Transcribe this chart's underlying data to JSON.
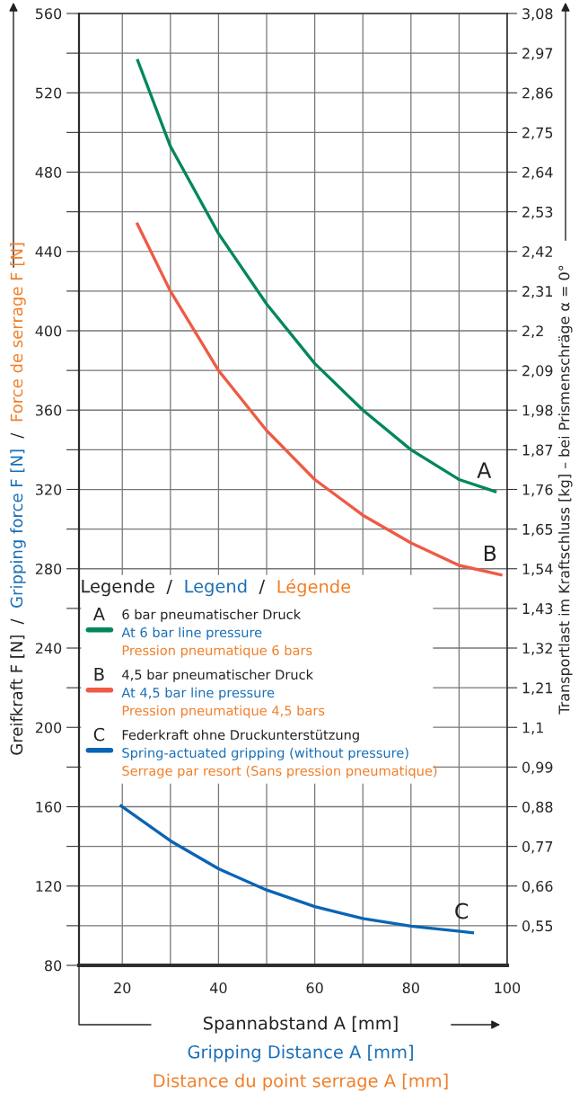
{
  "chart_data": {
    "type": "line",
    "xlabel": "Spannabstand A [mm]\nGripping Distance A [mm]\nDistance du point serrage A [mm]",
    "ylabel": "Greifkraft F [N] / Gripping force F [N] / Force de serrage F [N]",
    "y2label": "Transportlast im Kraftschluss [kg] – bei Prismenschräge α = 0°",
    "legend_title": "Legende / Legend / Légende",
    "xlim": [
      11,
      100
    ],
    "xticks": [
      20,
      {
        "value": 30,
        "label": null
      },
      40,
      {
        "value": 50,
        "label": null
      },
      60,
      {
        "value": 70,
        "label": null
      },
      80,
      {
        "value": 90,
        "label": null
      },
      100
    ],
    "ylim": [
      80,
      560
    ],
    "yticks": [
      80,
      {
        "value": 100,
        "label": null
      },
      120,
      {
        "value": 140,
        "label": null
      },
      160,
      {
        "value": 180,
        "label": null
      },
      200,
      {
        "value": 220,
        "label": null
      },
      240,
      {
        "value": 260,
        "label": null
      },
      280,
      {
        "value": 300,
        "label": null
      },
      320,
      {
        "value": 340,
        "label": null
      },
      360,
      {
        "value": 380,
        "label": null
      },
      400,
      {
        "value": 420,
        "label": null
      },
      440,
      {
        "value": 460,
        "label": null
      },
      480,
      {
        "value": 500,
        "label": null
      },
      520,
      {
        "value": 540,
        "label": null
      },
      560
    ],
    "y2lim": [
      0.44,
      3.08
    ],
    "y2ticks": [
      {
        "value": 0.55,
        "label": "0,55"
      },
      {
        "value": 0.66,
        "label": "0,66"
      },
      {
        "value": 0.77,
        "label": "0,77"
      },
      {
        "value": 0.88,
        "label": "0,88"
      },
      {
        "value": 0.99,
        "label": "0,99"
      },
      {
        "value": 1.1,
        "label": "1,1"
      },
      {
        "value": 1.21,
        "label": "1,21"
      },
      {
        "value": 1.32,
        "label": "1,32"
      },
      {
        "value": 1.43,
        "label": "1,43"
      },
      {
        "value": 1.54,
        "label": "1,54"
      },
      {
        "value": 1.65,
        "label": "1,65"
      },
      {
        "value": 1.76,
        "label": "1,76"
      },
      {
        "value": 1.87,
        "label": "1,87"
      },
      {
        "value": 1.98,
        "label": "1,98"
      },
      {
        "value": 2.09,
        "label": "2,09"
      },
      {
        "value": 2.2,
        "label": "2,2"
      },
      {
        "value": 2.31,
        "label": "2,31"
      },
      {
        "value": 2.42,
        "label": "2,42"
      },
      {
        "value": 2.53,
        "label": "2,53"
      },
      {
        "value": 2.64,
        "label": "2,64"
      },
      {
        "value": 2.75,
        "label": "2,75"
      },
      {
        "value": 2.86,
        "label": "2,86"
      },
      {
        "value": 2.97,
        "label": "2,97"
      },
      {
        "value": 3.08,
        "label": "3,08"
      }
    ],
    "grid": true,
    "legend": "center left",
    "line_style": "solid",
    "series": [
      {
        "name": "6 bar pneumatischer Druck\nAt 6 bar line pressure\nPression pneumatique 6 bars",
        "color": "#00875a",
        "x": [
          23.1,
          30,
          40,
          50,
          60,
          70,
          80,
          90,
          97.8
        ],
        "values": [
          537,
          493,
          449,
          413.5,
          383.5,
          360,
          340,
          325,
          318.7
        ]
      },
      {
        "name": "4,5 bar pneumatischer Druck\nAt 4,5 bar line pressure\nPression pneumatique 4,5 bars",
        "color": "#ef5a45",
        "x": [
          23,
          30,
          40,
          50,
          60,
          70,
          80,
          90,
          99
        ],
        "values": [
          454.5,
          420,
          380,
          349.7,
          325,
          307,
          293,
          281.7,
          276.8
        ]
      },
      {
        "name": "Federkraft ohne Druckunterstützung\nSpring-actuated gripping (without pressure)\nSerrage par resort (Sans pression pneumatique)",
        "color": "#0a64b4",
        "x": [
          19.5,
          30,
          40,
          50,
          60,
          70,
          80,
          93.1
        ],
        "values": [
          160.8,
          142.8,
          128.7,
          118,
          109.6,
          103.6,
          99.8,
          96.4
        ]
      }
    ],
    "annotations": [
      "A",
      "B",
      "C"
    ]
  }
}
